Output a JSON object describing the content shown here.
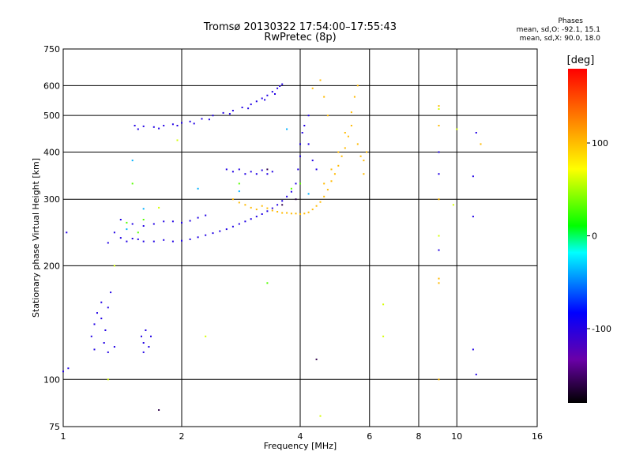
{
  "header": {
    "title": "Tromsø 20130322 17:54:00–17:55:43",
    "subtitle": "RwPretec (8p)"
  },
  "phases": {
    "heading": "Phases",
    "o_line": "mean, sd,O: -92.1, 15.1",
    "x_line": "mean, sd,X: 90.0, 18.0"
  },
  "chart_data": {
    "type": "scatter",
    "title": "Tromsø 20130322 17:54:00–17:55:43",
    "subtitle": "RwPretec (8p)",
    "xlabel": "Frequency [MHz]",
    "ylabel": "Stationary phase Virtual Height [km]",
    "x_scale": "log",
    "y_scale": "log",
    "xlim": [
      1,
      16
    ],
    "ylim": [
      75,
      750
    ],
    "x_ticks": [
      1,
      2,
      4,
      6,
      8,
      10,
      16
    ],
    "y_ticks": [
      75,
      100,
      200,
      300,
      400,
      500,
      600,
      750
    ],
    "grid": true,
    "colorbar": {
      "label": "[deg]",
      "range": [
        -180,
        180
      ],
      "ticks": [
        -100,
        0,
        100
      ]
    },
    "series": [
      {
        "phase": -100,
        "points": [
          [
            1.52,
            470
          ],
          [
            1.6,
            468
          ],
          [
            1.7,
            466
          ],
          [
            1.8,
            470
          ],
          [
            1.9,
            474
          ],
          [
            2.0,
            478
          ],
          [
            2.1,
            482
          ],
          [
            2.25,
            490
          ],
          [
            2.4,
            500
          ],
          [
            2.55,
            508
          ],
          [
            2.7,
            515
          ],
          [
            2.85,
            525
          ],
          [
            3.0,
            535
          ],
          [
            3.1,
            545
          ],
          [
            3.2,
            555
          ],
          [
            3.3,
            565
          ],
          [
            3.4,
            578
          ],
          [
            3.5,
            590
          ],
          [
            3.6,
            605
          ],
          [
            1.55,
            460
          ],
          [
            1.75,
            462
          ],
          [
            1.95,
            470
          ],
          [
            2.15,
            476
          ],
          [
            2.35,
            488
          ],
          [
            2.65,
            505
          ],
          [
            2.95,
            522
          ],
          [
            3.25,
            550
          ],
          [
            3.45,
            570
          ],
          [
            3.55,
            598
          ],
          [
            1.3,
            230
          ],
          [
            1.35,
            245
          ],
          [
            1.4,
            237
          ],
          [
            1.45,
            232
          ],
          [
            1.5,
            236
          ],
          [
            1.55,
            235
          ],
          [
            1.6,
            232
          ],
          [
            1.7,
            232
          ],
          [
            1.8,
            234
          ],
          [
            1.9,
            232
          ],
          [
            2.0,
            233
          ],
          [
            2.1,
            235
          ],
          [
            2.2,
            238
          ],
          [
            2.3,
            241
          ],
          [
            2.4,
            244
          ],
          [
            2.5,
            247
          ],
          [
            2.6,
            250
          ],
          [
            2.7,
            254
          ],
          [
            2.8,
            258
          ],
          [
            2.9,
            262
          ],
          [
            3.0,
            266
          ],
          [
            3.1,
            270
          ],
          [
            3.2,
            274
          ],
          [
            3.3,
            279
          ],
          [
            3.4,
            284
          ],
          [
            3.5,
            290
          ],
          [
            3.6,
            297
          ],
          [
            3.7,
            305
          ],
          [
            3.8,
            314
          ],
          [
            1.4,
            265
          ],
          [
            1.5,
            258
          ],
          [
            1.6,
            255
          ],
          [
            1.7,
            258
          ],
          [
            1.8,
            262
          ],
          [
            1.9,
            262
          ],
          [
            2.0,
            260
          ],
          [
            2.1,
            263
          ],
          [
            2.2,
            268
          ],
          [
            2.3,
            272
          ],
          [
            2.6,
            360
          ],
          [
            2.7,
            355
          ],
          [
            2.8,
            360
          ],
          [
            2.9,
            350
          ],
          [
            3.0,
            355
          ],
          [
            3.1,
            350
          ],
          [
            3.2,
            358
          ],
          [
            3.3,
            350
          ],
          [
            3.4,
            355
          ],
          [
            3.9,
            330
          ],
          [
            3.95,
            360
          ],
          [
            4.0,
            390
          ],
          [
            4.0,
            420
          ],
          [
            4.05,
            450
          ],
          [
            4.1,
            470
          ],
          [
            4.2,
            500
          ],
          [
            4.2,
            420
          ],
          [
            4.3,
            380
          ],
          [
            4.4,
            360
          ],
          [
            1.18,
            130
          ],
          [
            1.2,
            140
          ],
          [
            1.22,
            150
          ],
          [
            1.25,
            160
          ],
          [
            1.25,
            145
          ],
          [
            1.28,
            135
          ],
          [
            1.3,
            155
          ],
          [
            1.32,
            170
          ],
          [
            1.27,
            125
          ],
          [
            1.2,
            120
          ],
          [
            1.3,
            118
          ],
          [
            1.35,
            122
          ],
          [
            1.58,
            130
          ],
          [
            1.6,
            125
          ],
          [
            1.62,
            135
          ],
          [
            1.65,
            122
          ],
          [
            1.67,
            130
          ],
          [
            1.6,
            118
          ],
          [
            1.02,
            245
          ],
          [
            1.0,
            105
          ],
          [
            1.03,
            107
          ],
          [
            9.0,
            220
          ],
          [
            9.0,
            400
          ],
          [
            9.0,
            350
          ],
          [
            11.0,
            345
          ],
          [
            11.0,
            270
          ],
          [
            11.2,
            450
          ],
          [
            11.0,
            120
          ],
          [
            11.2,
            103
          ]
        ]
      },
      {
        "phase": 100,
        "points": [
          [
            2.7,
            300
          ],
          [
            2.8,
            294
          ],
          [
            2.9,
            290
          ],
          [
            3.0,
            285
          ],
          [
            3.1,
            282
          ],
          [
            3.2,
            288
          ],
          [
            3.3,
            284
          ],
          [
            3.4,
            280
          ],
          [
            3.5,
            278
          ],
          [
            3.6,
            276
          ],
          [
            3.7,
            276
          ],
          [
            3.8,
            275
          ],
          [
            3.9,
            275
          ],
          [
            4.0,
            274
          ],
          [
            4.1,
            275
          ],
          [
            4.2,
            277
          ],
          [
            4.3,
            282
          ],
          [
            4.4,
            288
          ],
          [
            4.5,
            295
          ],
          [
            4.6,
            305
          ],
          [
            4.7,
            318
          ],
          [
            4.8,
            335
          ],
          [
            4.9,
            350
          ],
          [
            5.0,
            368
          ],
          [
            5.1,
            390
          ],
          [
            5.2,
            410
          ],
          [
            5.3,
            440
          ],
          [
            5.4,
            470
          ],
          [
            4.6,
            330
          ],
          [
            4.8,
            360
          ],
          [
            5.0,
            400
          ],
          [
            5.2,
            450
          ],
          [
            5.4,
            510
          ],
          [
            5.5,
            560
          ],
          [
            5.6,
            600
          ],
          [
            5.6,
            420
          ],
          [
            5.7,
            390
          ],
          [
            5.8,
            380
          ],
          [
            5.8,
            350
          ],
          [
            5.9,
            400
          ],
          [
            4.3,
            590
          ],
          [
            4.5,
            620
          ],
          [
            4.6,
            560
          ],
          [
            4.7,
            500
          ],
          [
            9.0,
            530
          ],
          [
            9.0,
            470
          ],
          [
            9.0,
            185
          ],
          [
            9.0,
            180
          ],
          [
            9.0,
            100
          ],
          [
            9.0,
            300
          ],
          [
            11.5,
            420
          ]
        ]
      },
      {
        "phase": 60,
        "points": [
          [
            6.5,
            158
          ],
          [
            6.5,
            130
          ],
          [
            10.0,
            460
          ],
          [
            9.8,
            290
          ],
          [
            1.75,
            285
          ],
          [
            1.95,
            430
          ],
          [
            2.3,
            130
          ],
          [
            4.5,
            80
          ],
          [
            9.0,
            240
          ],
          [
            9.0,
            520
          ],
          [
            1.3,
            100
          ],
          [
            1.35,
            200
          ]
        ]
      },
      {
        "phase": 30,
        "points": [
          [
            1.5,
            330
          ],
          [
            1.6,
            265
          ],
          [
            3.3,
            180
          ],
          [
            3.8,
            320
          ],
          [
            4.0,
            330
          ],
          [
            2.8,
            330
          ],
          [
            1.45,
            260
          ],
          [
            1.55,
            245
          ]
        ]
      },
      {
        "phase": -40,
        "points": [
          [
            1.45,
            250
          ],
          [
            1.6,
            283
          ],
          [
            2.2,
            320
          ],
          [
            2.8,
            315
          ],
          [
            1.5,
            380
          ],
          [
            4.2,
            310
          ],
          [
            3.7,
            460
          ]
        ]
      },
      {
        "phase": -160,
        "points": [
          [
            1.75,
            83
          ],
          [
            4.4,
            113
          ],
          [
            3.3,
            360
          ],
          [
            3.6,
            290
          ],
          [
            3.9,
            300
          ]
        ]
      }
    ]
  }
}
